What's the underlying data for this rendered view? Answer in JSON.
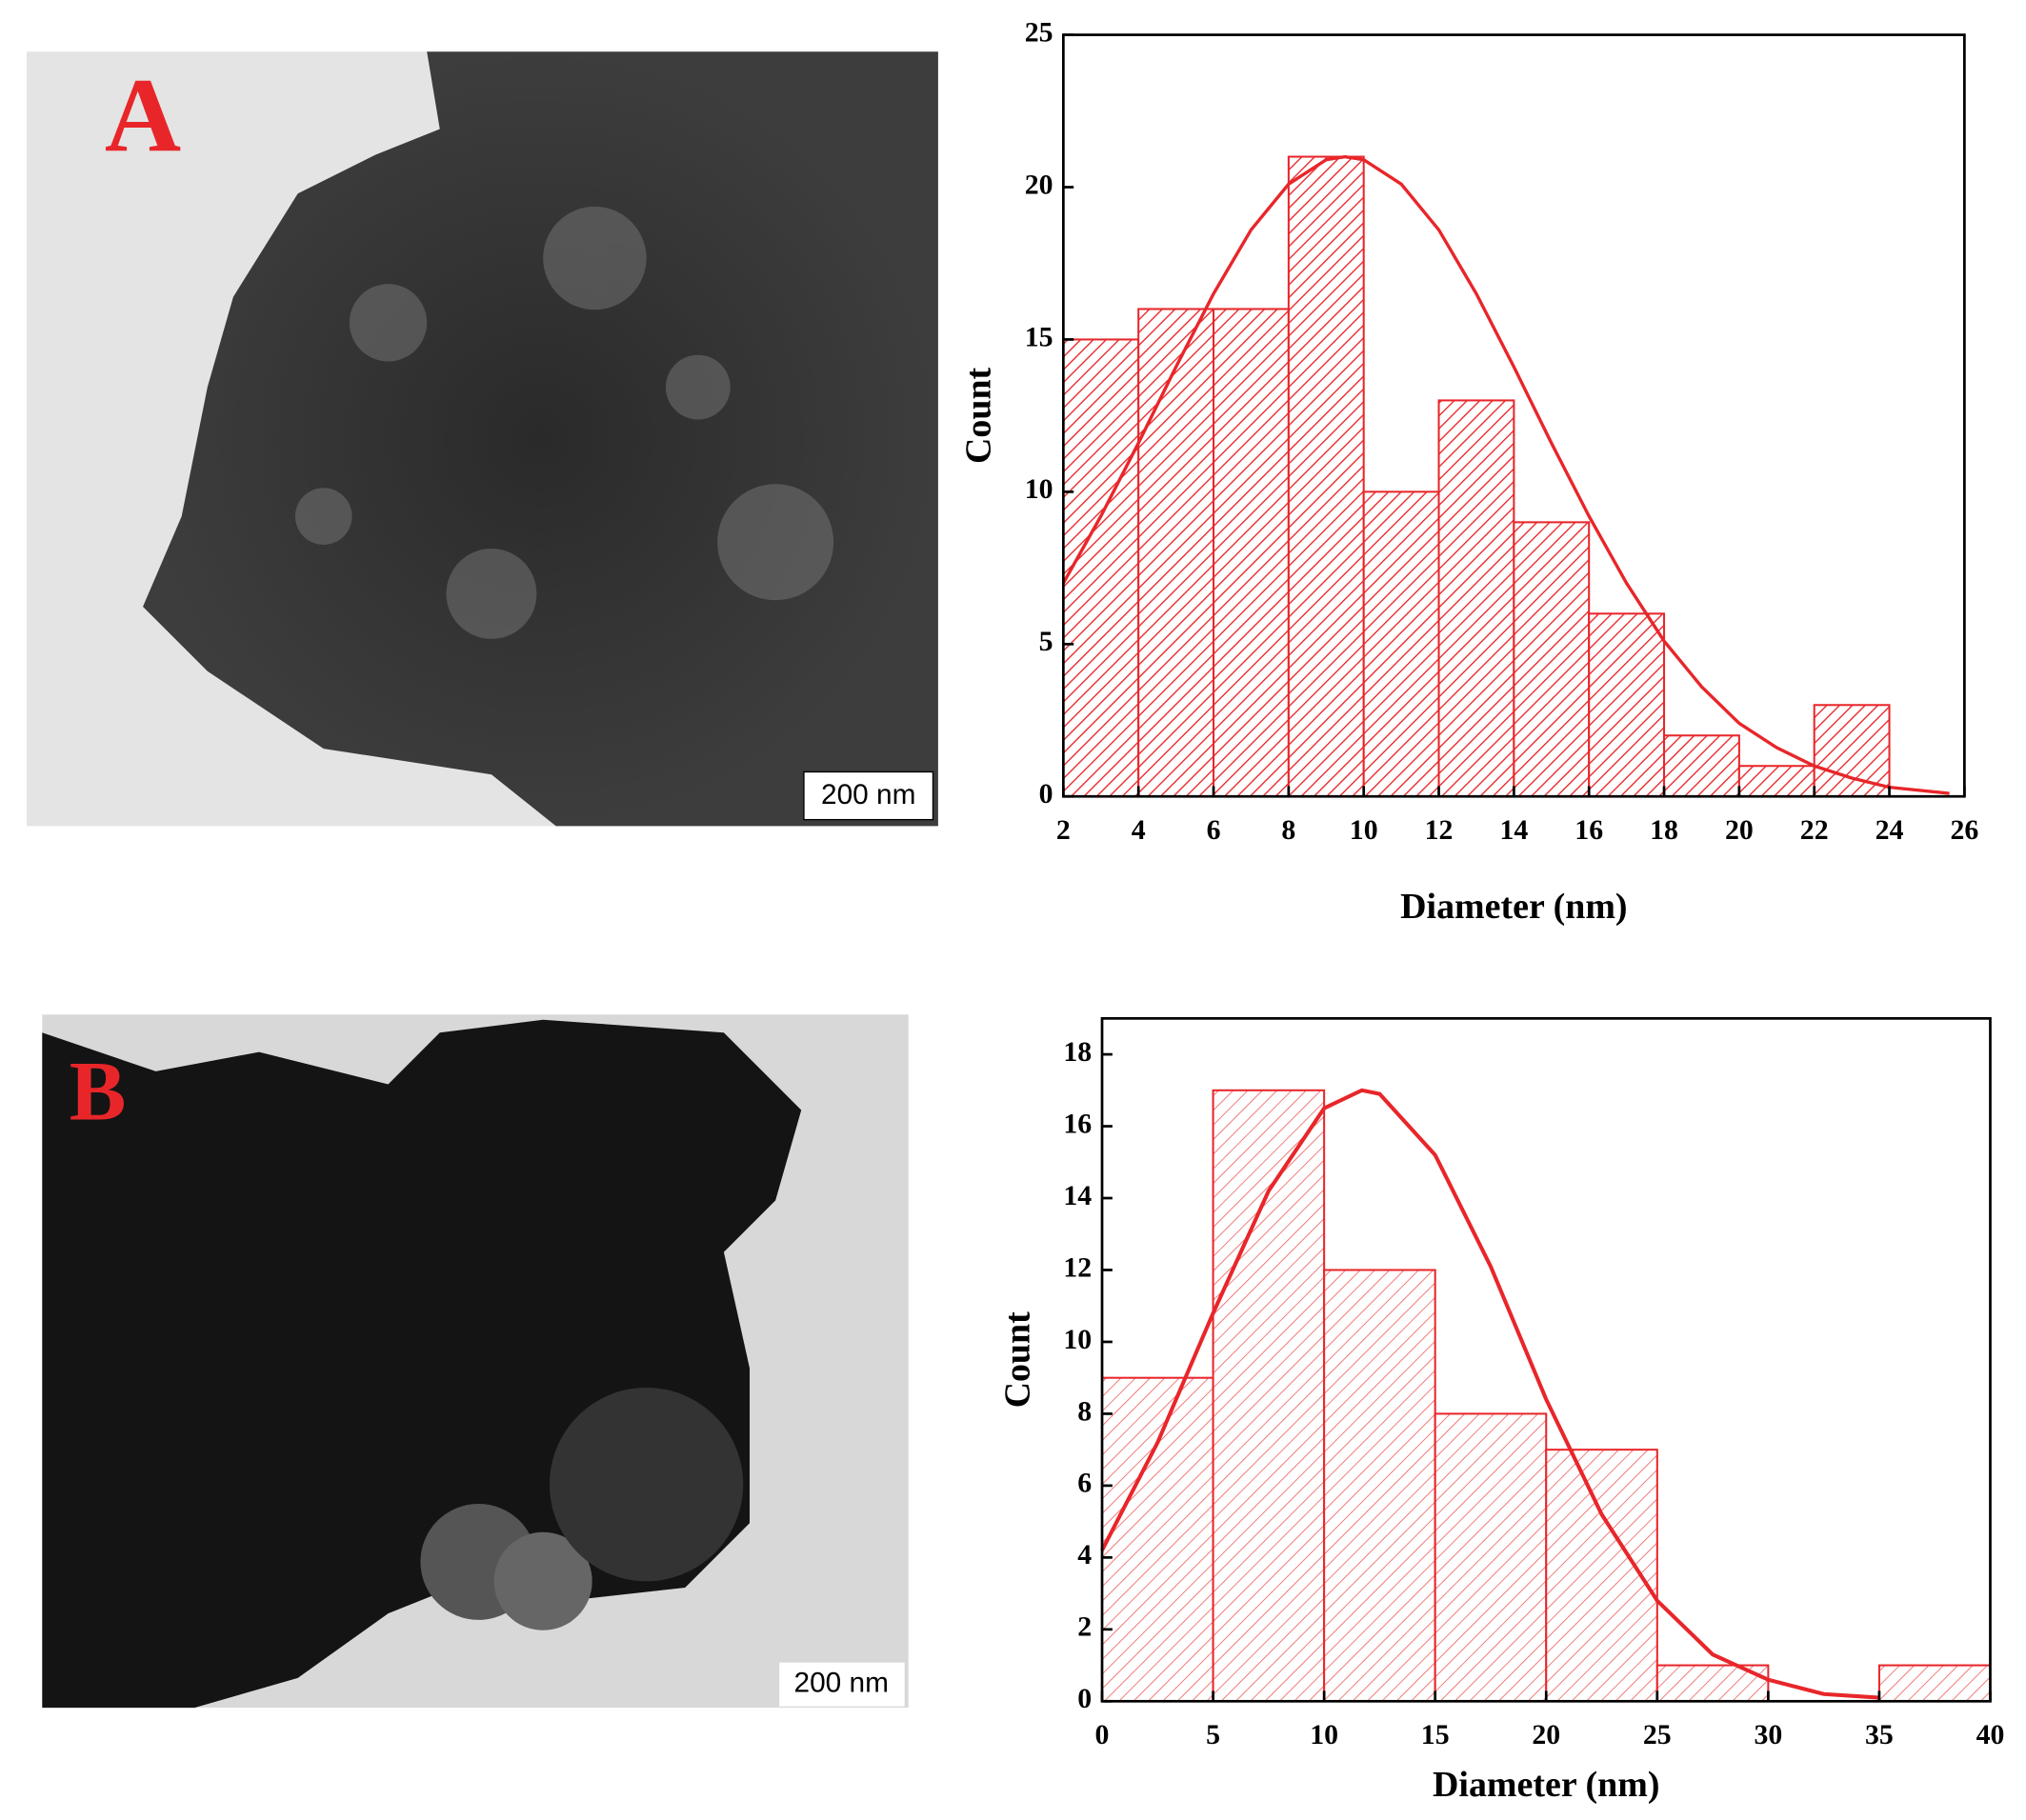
{
  "panels": [
    {
      "label": "A",
      "scale_bar": "200 nm"
    },
    {
      "label": "B",
      "scale_bar": "200 nm"
    }
  ],
  "chart_data": [
    {
      "type": "histogram",
      "x_label": "Diameter (nm)",
      "y_label": "Count",
      "color": "#e8262a",
      "bins": [
        2,
        4,
        6,
        8,
        10,
        12,
        14,
        16,
        18,
        20,
        22,
        24
      ],
      "values": [
        15,
        16,
        16,
        21,
        10,
        13,
        9,
        6,
        2,
        1,
        3
      ],
      "fit": {
        "x": [
          2,
          3,
          4,
          5,
          6,
          7,
          8,
          9,
          9.5,
          10,
          11,
          12,
          13,
          14,
          15,
          16,
          17,
          18,
          19,
          20,
          21,
          22,
          23,
          24,
          25.6
        ],
        "values": [
          7.0,
          9.2,
          11.6,
          14.1,
          16.5,
          18.6,
          20.1,
          20.9,
          21.0,
          20.9,
          20.1,
          18.6,
          16.5,
          14.1,
          11.6,
          9.2,
          7.0,
          5.1,
          3.6,
          2.4,
          1.6,
          1.0,
          0.6,
          0.3,
          0.1
        ]
      },
      "xlim": [
        2,
        26
      ],
      "xticks": [
        2,
        4,
        6,
        8,
        10,
        12,
        14,
        16,
        18,
        20,
        22,
        24,
        26
      ],
      "ylim": [
        0,
        25
      ],
      "yticks": [
        0,
        5,
        10,
        15,
        20,
        25
      ],
      "grid": false
    },
    {
      "type": "histogram",
      "x_label": "Diameter (nm)",
      "y_label": "Count",
      "color": "#e8262a",
      "bins": [
        0,
        5,
        10,
        15,
        20,
        25,
        30,
        35,
        40
      ],
      "values": [
        9,
        17,
        12,
        8,
        7,
        1,
        0,
        1
      ],
      "fit": {
        "x": [
          0,
          2.5,
          5,
          7.5,
          10,
          11.7,
          12.5,
          15,
          17.5,
          20,
          22.5,
          25,
          27.5,
          30,
          32.5,
          35
        ],
        "values": [
          4.2,
          7.2,
          10.8,
          14.2,
          16.5,
          17,
          16.9,
          15.2,
          12.1,
          8.4,
          5.2,
          2.8,
          1.3,
          0.6,
          0.2,
          0.1
        ]
      },
      "xlim": [
        0,
        40
      ],
      "xticks": [
        0,
        5,
        10,
        15,
        20,
        25,
        30,
        35,
        40
      ],
      "ylim": [
        0,
        19
      ],
      "yticks": [
        0,
        2,
        4,
        6,
        8,
        10,
        12,
        14,
        16,
        18
      ],
      "grid": false
    }
  ]
}
